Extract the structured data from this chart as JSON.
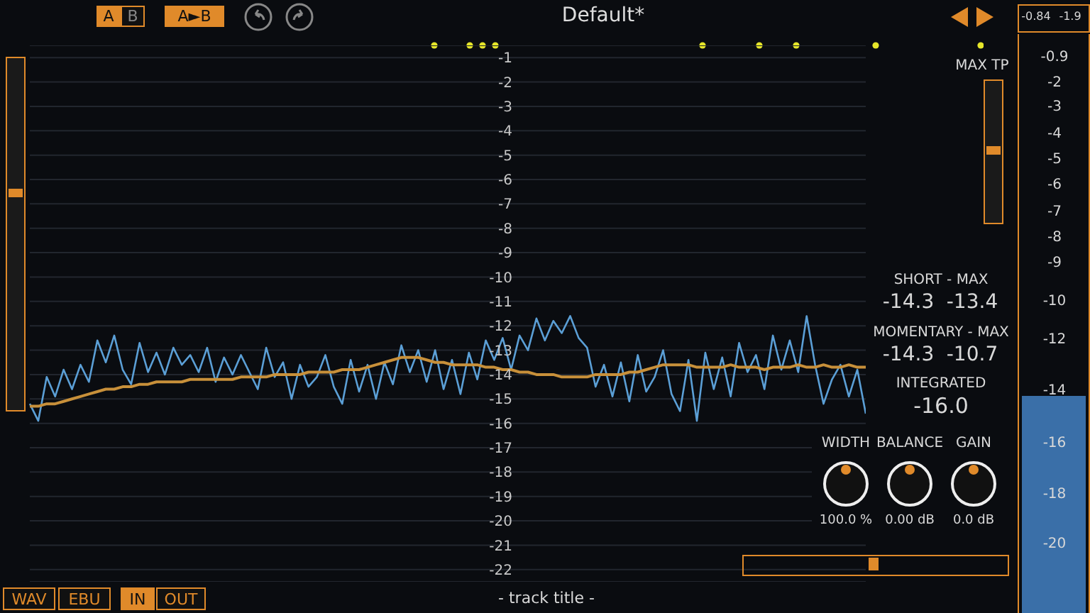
{
  "chart_data": {
    "type": "line",
    "title": "Default*",
    "categories": [
      null,
      null,
      null,
      null,
      null,
      null,
      null,
      null,
      null,
      null,
      null,
      null,
      null,
      null,
      null,
      null,
      null,
      null,
      null,
      null,
      null,
      null,
      null,
      null,
      null,
      null,
      null,
      null,
      null,
      null,
      null,
      null,
      null,
      null,
      null,
      null,
      null,
      null,
      null,
      null,
      null,
      null,
      null,
      null,
      null,
      null,
      null,
      null,
      null,
      null,
      null,
      null,
      null,
      null,
      null,
      null,
      null,
      null,
      null,
      null,
      null,
      null,
      null,
      null,
      null,
      null,
      null,
      null,
      null,
      null,
      null,
      null,
      null,
      null,
      null,
      null,
      null,
      null,
      null,
      null,
      null,
      null,
      null,
      null,
      null,
      null,
      null,
      null,
      null,
      null,
      null,
      null,
      null,
      null,
      null,
      null,
      null,
      null,
      null,
      null
    ],
    "series": [
      {
        "color": "#5b9fd6",
        "values": [
          -15.2,
          -15.9,
          -14.1,
          -14.9,
          -13.8,
          -14.6,
          -13.6,
          -14.3,
          -12.6,
          -13.5,
          -12.4,
          -13.8,
          -14.4,
          -12.7,
          -13.9,
          -13.1,
          -14.0,
          -12.9,
          -13.6,
          -13.2,
          -13.9,
          -12.9,
          -14.3,
          -13.3,
          -14.0,
          -13.2,
          -13.9,
          -14.6,
          -12.9,
          -14.1,
          -13.5,
          -15.0,
          -13.6,
          -14.5,
          -14.1,
          -13.2,
          -14.5,
          -15.2,
          -13.4,
          -14.7,
          -13.6,
          -15.0,
          -13.5,
          -14.4,
          -12.8,
          -13.9,
          -13.0,
          -14.3,
          -13.0,
          -14.6,
          -13.4,
          -14.8,
          -13.1,
          -14.2,
          -12.6,
          -13.4,
          -12.5,
          -13.8,
          -12.4,
          -13.0,
          -11.7,
          -12.6,
          -11.8,
          -12.3,
          -11.6,
          -12.5,
          -12.9,
          -14.5,
          -13.6,
          -14.9,
          -13.5,
          -15.1,
          -13.2,
          -14.7,
          -14.1,
          -13.0,
          -14.8,
          -15.5,
          -13.4,
          -15.9,
          -13.1,
          -14.6,
          -13.3,
          -14.9,
          -12.7,
          -13.9,
          -13.2,
          -14.6,
          -12.4,
          -13.8,
          -12.6,
          -13.9,
          -11.6,
          -13.6,
          -15.2,
          -14.2,
          -13.6,
          -14.9,
          -13.8,
          -15.6
        ]
      },
      {
        "color": "#c8903a",
        "values": [
          -15.3,
          -15.3,
          -15.2,
          -15.2,
          -15.1,
          -15.0,
          -14.9,
          -14.8,
          -14.7,
          -14.6,
          -14.6,
          -14.5,
          -14.5,
          -14.4,
          -14.4,
          -14.3,
          -14.3,
          -14.3,
          -14.3,
          -14.2,
          -14.2,
          -14.2,
          -14.2,
          -14.2,
          -14.2,
          -14.1,
          -14.1,
          -14.1,
          -14.1,
          -14.0,
          -14.0,
          -14.0,
          -14.0,
          -13.9,
          -13.9,
          -13.9,
          -13.9,
          -13.8,
          -13.8,
          -13.8,
          -13.7,
          -13.6,
          -13.5,
          -13.4,
          -13.3,
          -13.3,
          -13.3,
          -13.4,
          -13.5,
          -13.5,
          -13.6,
          -13.6,
          -13.6,
          -13.6,
          -13.7,
          -13.7,
          -13.8,
          -13.8,
          -13.9,
          -13.9,
          -14.0,
          -14.0,
          -14.0,
          -14.1,
          -14.1,
          -14.1,
          -14.1,
          -14.0,
          -14.0,
          -14.0,
          -14.0,
          -13.9,
          -13.9,
          -13.8,
          -13.7,
          -13.6,
          -13.6,
          -13.6,
          -13.6,
          -13.7,
          -13.7,
          -13.7,
          -13.7,
          -13.6,
          -13.7,
          -13.7,
          -13.7,
          -13.8,
          -13.7,
          -13.7,
          -13.7,
          -13.6,
          -13.7,
          -13.7,
          -13.6,
          -13.7,
          -13.7,
          -13.6,
          -13.7,
          -13.7
        ]
      }
    ],
    "ylim": [
      -22.5,
      -0.5
    ],
    "yticks": [
      -1,
      -2,
      -3,
      -4,
      -5,
      -6,
      -7,
      -8,
      -9,
      -10,
      -11,
      -12,
      -13,
      -14,
      -15,
      -16,
      -17,
      -18,
      -19,
      -20,
      -21,
      -22
    ],
    "grid": "y",
    "legend": false,
    "marker": "none",
    "line_style": "solid",
    "annotations": [
      "A",
      "B",
      "A►B",
      "MAX TP",
      "SHORT - MAX",
      "-14.3",
      "-13.4",
      "MOMENTARY - MAX",
      "-14.3",
      "-10.7",
      "INTEGRATED",
      "-16.0",
      "WIDTH",
      "BALANCE",
      "GAIN",
      "100.0 %",
      "0.00 dB",
      "0.0 dB",
      "WAV",
      "EBU",
      "IN",
      "OUT",
      "- track title -",
      "-0.84",
      "-1.9",
      "-0.9",
      "-2",
      "-3",
      "-4",
      "-5",
      "-6",
      "-7",
      "-8",
      "-9",
      "-10",
      "-12",
      "-14",
      "-16",
      "-18",
      "-20"
    ]
  }
}
